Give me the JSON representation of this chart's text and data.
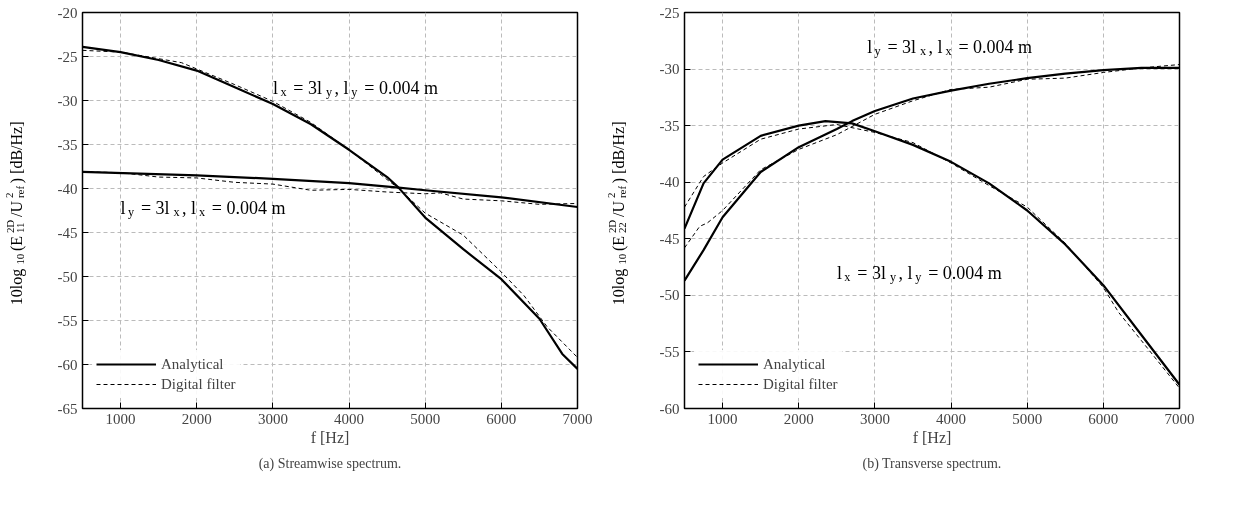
{
  "chart_data": [
    {
      "type": "line",
      "title": "(a) Streamwise spectrum.",
      "xlabel": "f [Hz]",
      "ylabel": "10log$_{10}$(E$^{2D}$$_{11}$/U$^{2}$$_{ref}$) [dB/Hz]",
      "xlim": [
        500,
        7000
      ],
      "ylim": [
        -65,
        -20
      ],
      "xticks": [
        1000,
        2000,
        3000,
        4000,
        5000,
        6000,
        7000
      ],
      "yticks": [
        -65,
        -60,
        -55,
        -50,
        -45,
        -40,
        -35,
        -30,
        -25,
        -20
      ],
      "grid": true,
      "legend": "bottom left",
      "series": [
        {
          "name": "Analytical",
          "color": "#000000",
          "line_style": "solid",
          "x": [
            500,
            1000,
            1500,
            2000,
            2500,
            3000,
            3500,
            4000,
            4500,
            4650,
            5000,
            5500,
            6000,
            6500,
            6800,
            7000
          ],
          "values": [
            -23.9,
            -24.5,
            -25.4,
            -26.6,
            -28.5,
            -30.4,
            -32.7,
            -35.6,
            -38.7,
            -39.9,
            -43.3,
            -46.9,
            -50.3,
            -54.8,
            -58.8,
            -60.5
          ]
        },
        {
          "name": "Digital filter",
          "color": "#000000",
          "line_style": "dashed",
          "x": [
            500,
            1000,
            1800,
            2500,
            3000,
            3500,
            4000,
            4650,
            5000,
            5500,
            6000,
            6300,
            6600,
            7000
          ],
          "values": [
            -24.3,
            -24.5,
            -25.7,
            -28.2,
            -30.1,
            -32.5,
            -35.6,
            -40.0,
            -42.8,
            -45.3,
            -49.5,
            -52.2,
            -55.7,
            -59.2
          ]
        },
        {
          "color": "#000000",
          "line_style": "solid",
          "x": [
            500,
            2000,
            3000,
            4000,
            4650,
            5000,
            6000,
            7000
          ],
          "values": [
            -38.1,
            -38.5,
            -38.9,
            -39.4,
            -39.9,
            -40.2,
            -41.0,
            -42.1
          ]
        },
        {
          "color": "#000000",
          "line_style": "dashed",
          "x": [
            500,
            1000,
            1500,
            2000,
            2500,
            3000,
            3500,
            4000,
            4500,
            5000,
            5200,
            5500,
            6000,
            6500,
            7000
          ],
          "values": [
            -38.1,
            -38.2,
            -38.7,
            -38.8,
            -39.3,
            -39.5,
            -40.2,
            -40.1,
            -40.4,
            -40.6,
            -40.5,
            -41.2,
            -41.4,
            -41.8,
            -41.7
          ]
        }
      ],
      "annotations": [
        "l$_{x}$ = 3l$_{y}$, l$_{y}$ = 0.004 m",
        "l$_{y}$ = 3l$_{x}$, l$_{x}$ = 0.004 m"
      ]
    },
    {
      "type": "line",
      "title": "(b) Transverse spectrum.",
      "xlabel": "f [Hz]",
      "ylabel": "10log$_{10}$(E$^{2D}$$_{22}$/U$^{2}$$_{ref}$) [dB/Hz]",
      "xlim": [
        500,
        7000
      ],
      "ylim": [
        -60,
        -25
      ],
      "xticks": [
        1000,
        2000,
        3000,
        4000,
        5000,
        6000,
        7000
      ],
      "yticks": [
        -60,
        -55,
        -50,
        -45,
        -40,
        -35,
        -30,
        -25
      ],
      "grid": true,
      "legend": "bottom left",
      "series": [
        {
          "name": "Analytical",
          "color": "#000000",
          "line_style": "solid",
          "x": [
            500,
            750,
            1000,
            1500,
            2000,
            2350,
            2700,
            3000,
            3500,
            4000,
            4500,
            5000,
            5500,
            6000,
            6500,
            7000
          ],
          "values": [
            -44.1,
            -40.1,
            -38.0,
            -35.9,
            -35.0,
            -34.6,
            -34.8,
            -35.5,
            -36.7,
            -38.2,
            -40.1,
            -42.5,
            -45.5,
            -49.1,
            -53.5,
            -57.9
          ]
        },
        {
          "name": "Digital filter",
          "color": "#000000",
          "line_style": "dashed",
          "x": [
            500,
            750,
            1000,
            1500,
            2000,
            2500,
            3000,
            3500,
            4000,
            4500,
            5000,
            5500,
            6000,
            6200,
            6500,
            7000
          ],
          "values": [
            -42.2,
            -39.5,
            -38.3,
            -36.2,
            -35.3,
            -34.9,
            -35.6,
            -36.5,
            -38.3,
            -40.3,
            -42.2,
            -45.4,
            -49.3,
            -51.5,
            -54.0,
            -58.2
          ]
        },
        {
          "color": "#000000",
          "line_style": "solid",
          "x": [
            500,
            750,
            1000,
            1500,
            2000,
            2500,
            2700,
            3000,
            3500,
            4000,
            4500,
            5000,
            5500,
            6000,
            6500,
            7000
          ],
          "values": [
            -48.7,
            -46.0,
            -43.1,
            -39.1,
            -36.9,
            -35.3,
            -34.6,
            -33.7,
            -32.6,
            -31.9,
            -31.3,
            -30.8,
            -30.4,
            -30.1,
            -29.9,
            -29.9
          ]
        },
        {
          "color": "#000000",
          "line_style": "dashed",
          "x": [
            500,
            700,
            800,
            1000,
            1500,
            2000,
            2500,
            3000,
            3500,
            4000,
            4500,
            5000,
            5500,
            6000,
            6500,
            7000
          ],
          "values": [
            -45.8,
            -43.9,
            -43.6,
            -42.5,
            -38.9,
            -37.1,
            -35.8,
            -34.0,
            -32.8,
            -31.8,
            -31.6,
            -30.9,
            -30.8,
            -30.3,
            -29.9,
            -29.6
          ]
        }
      ],
      "annotations": [
        "l$_{y}$ = 3l$_{x}$, l$_{x}$ = 0.004 m",
        "l$_{x}$ = 3l$_{y}$, l$_{y}$ = 0.004 m"
      ]
    }
  ]
}
